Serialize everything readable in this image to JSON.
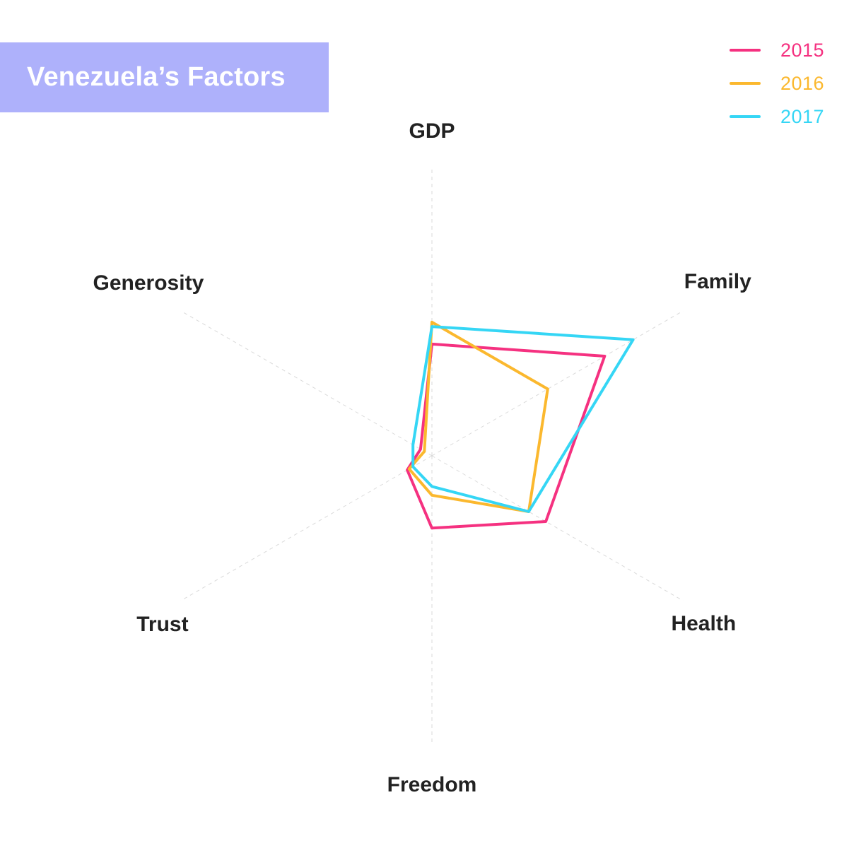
{
  "chart_data": {
    "type": "radar",
    "title": "Venezuela’s Factors",
    "axes": [
      "GDP",
      "Family",
      "Health",
      "Freedom",
      "Trust",
      "Generosity"
    ],
    "rlim": [
      0,
      1
    ],
    "grid": "dashed spokes only",
    "legend_position": "top-right",
    "series": [
      {
        "name": "2015",
        "color": "#f53180",
        "values": [
          0.51,
          0.91,
          0.6,
          0.33,
          0.13,
          0.06
        ]
      },
      {
        "name": "2016",
        "color": "#fbb82e",
        "values": [
          0.61,
          0.61,
          0.51,
          0.18,
          0.12,
          0.04
        ]
      },
      {
        "name": "2017",
        "color": "#35d6f5",
        "values": [
          0.59,
          1.06,
          0.51,
          0.14,
          0.1,
          0.1
        ]
      }
    ]
  }
}
